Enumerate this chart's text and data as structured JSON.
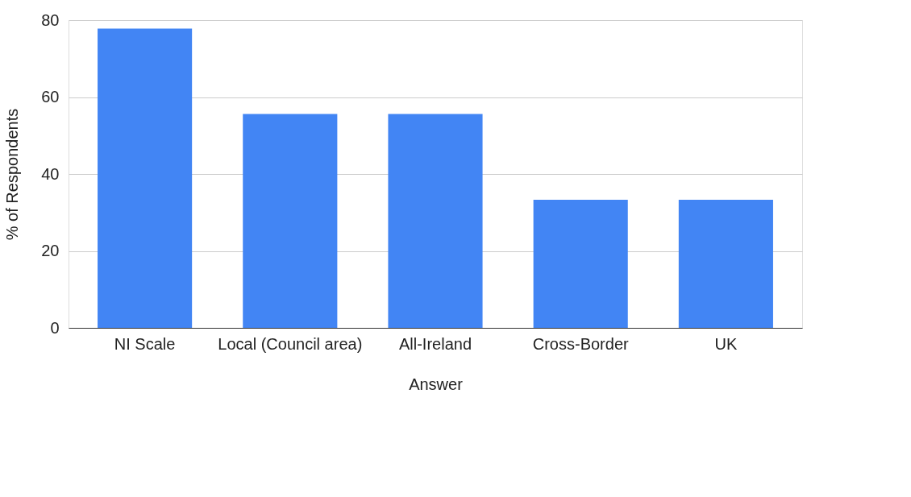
{
  "chart_data": {
    "type": "bar",
    "xlabel": "Answer",
    "ylabel": "% of Respondents",
    "categories": [
      "NI Scale",
      "Local (Council area)",
      "All-Ireland",
      "Cross-Border",
      "UK"
    ],
    "values": [
      77.8,
      55.6,
      55.6,
      33.3,
      33.3
    ],
    "color": "#4285f4",
    "ylim": [
      0,
      80
    ],
    "yticks": [
      0,
      20,
      40,
      60,
      80
    ],
    "grid": "y"
  }
}
